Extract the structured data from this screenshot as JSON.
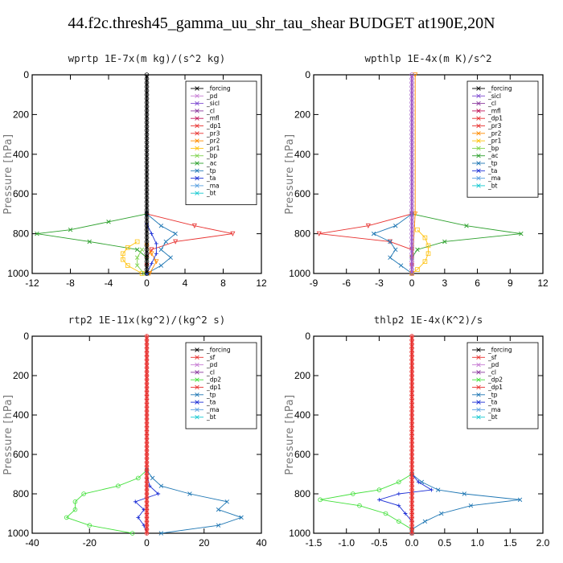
{
  "title": "44.f2c.thresh45_gamma_uu_shr_tau_shear  BUDGET at190E,20N",
  "chart_data": [
    {
      "type": "line",
      "title": "wprtp  1E-7x(m kg)/(s^2 kg)",
      "ylabel": "Pressure [hPa]",
      "xlim": [
        -12,
        12
      ],
      "ylim": [
        1000,
        0
      ],
      "xticks": [
        -12,
        -8,
        -4,
        0,
        4,
        8,
        12
      ],
      "yticks": [
        0,
        200,
        400,
        600,
        800,
        1000
      ],
      "legend": [
        "_forcing",
        "_pd",
        "_sicl",
        "_cl",
        "_mfl",
        "_dp1",
        "_pr3",
        "_pr2",
        "_pr1",
        "_bp",
        "_ac",
        "_tp",
        "_ta",
        "_ma",
        "_bt"
      ],
      "series": [
        {
          "name": "_dp1",
          "color": "#e8312f",
          "marker": "tri",
          "p": [
            700,
            760,
            800,
            840,
            880,
            920,
            960,
            1000
          ],
          "x": [
            0,
            5,
            9,
            3,
            0.5,
            0,
            0,
            0
          ]
        },
        {
          "name": "_ac",
          "color": "#2ca02c",
          "marker": "x",
          "p": [
            700,
            740,
            780,
            800,
            840,
            880,
            920,
            1000
          ],
          "x": [
            0,
            -4,
            -8,
            -11.5,
            -6,
            -1,
            0,
            0
          ]
        },
        {
          "name": "_tp",
          "color": "#1f77b4",
          "marker": "x",
          "p": [
            700,
            760,
            800,
            840,
            880,
            920,
            960,
            1000
          ],
          "x": [
            0,
            1.5,
            3,
            2,
            1.5,
            2.5,
            1.5,
            0
          ]
        },
        {
          "name": "_pr1",
          "color": "#ffc20e",
          "marker": "sq",
          "p": [
            840,
            870,
            900,
            930,
            960,
            1000
          ],
          "x": [
            -1,
            -2,
            -2.5,
            -2.5,
            -2,
            -0.5
          ]
        },
        {
          "name": "_pr2",
          "color": "#ff8c00",
          "marker": "tri",
          "p": [
            860,
            900,
            940,
            1000
          ],
          "x": [
            0,
            0.5,
            1,
            0.3
          ]
        },
        {
          "name": "_ta",
          "color": "#1c2fd6",
          "marker": "plus",
          "p": [
            750,
            800,
            850,
            900,
            950,
            1000
          ],
          "x": [
            0,
            0.5,
            1,
            1,
            0.5,
            0
          ]
        },
        {
          "name": "_bp",
          "color": "#7fd34e",
          "marker": "x",
          "p": [
            880,
            920,
            960,
            1000
          ],
          "x": [
            -0.5,
            -1,
            -1,
            -0.3
          ]
        },
        {
          "name": "_forcing",
          "color": "#000000",
          "marker": "circ",
          "p": [
            0,
            1000
          ],
          "x": [
            0,
            0
          ]
        }
      ]
    },
    {
      "type": "line",
      "title": "wpthlp  1E-4x(m K)/s^2",
      "ylabel": "Pressure [hPa]",
      "xlim": [
        -9,
        12
      ],
      "ylim": [
        1000,
        0
      ],
      "xticks": [
        -9,
        -6,
        -3,
        0,
        3,
        6,
        9,
        12
      ],
      "yticks": [
        0,
        200,
        400,
        600,
        800,
        1000
      ],
      "legend": [
        "_forcing",
        "_sicl",
        "_cl",
        "_mfl",
        "_dp1",
        "_pr3",
        "_pr2",
        "_pr1",
        "_bp",
        "_ac",
        "_tp",
        "_ta",
        "_ma",
        "_bt"
      ],
      "series": [
        {
          "name": "_dp1",
          "color": "#e8312f",
          "marker": "tri",
          "p": [
            700,
            760,
            800,
            840,
            880,
            920,
            960,
            1000
          ],
          "x": [
            0,
            -4,
            -8.5,
            -2,
            0,
            0,
            0,
            0
          ]
        },
        {
          "name": "_ac",
          "color": "#2ca02c",
          "marker": "x",
          "p": [
            700,
            760,
            800,
            840,
            880,
            920,
            1000
          ],
          "x": [
            0,
            5,
            10,
            3,
            0.5,
            0,
            0
          ]
        },
        {
          "name": "_tp",
          "color": "#1f77b4",
          "marker": "x",
          "p": [
            700,
            760,
            800,
            840,
            880,
            920,
            960,
            1000
          ],
          "x": [
            0,
            -1.5,
            -3.5,
            -2,
            -1.5,
            -2,
            -1,
            0
          ]
        },
        {
          "name": "_pr1",
          "color": "#ffc20e",
          "marker": "sq",
          "p": [
            780,
            820,
            860,
            900,
            940,
            980,
            1000
          ],
          "x": [
            0.5,
            1.2,
            1.5,
            1.5,
            1.2,
            0.5,
            0
          ]
        },
        {
          "name": "_pr2",
          "color": "#ff8c00",
          "marker": "tri",
          "p": [
            0,
            700,
            1000
          ],
          "x": [
            0.3,
            0.3,
            0
          ]
        },
        {
          "name": "_forcing",
          "color": "#a05bc8",
          "marker": "circ",
          "p": [
            0,
            1000
          ],
          "x": [
            0,
            0
          ]
        }
      ]
    },
    {
      "type": "line",
      "title": "rtp2  1E-11x(kg^2)/(kg^2 s)",
      "ylabel": "Pressure [hPa]",
      "xlim": [
        -40,
        40
      ],
      "ylim": [
        1000,
        0
      ],
      "xticks": [
        -40,
        -20,
        0,
        20,
        40
      ],
      "yticks": [
        0,
        200,
        400,
        600,
        800,
        1000
      ],
      "legend": [
        "_forcing",
        "_sf",
        "_pd",
        "_cl",
        "_dp2",
        "_dp1",
        "_tp",
        "_ta",
        "_ma",
        "_bt"
      ],
      "series": [
        {
          "name": "_dp1",
          "color": "#42e03a",
          "marker": "circ",
          "p": [
            680,
            720,
            760,
            800,
            840,
            880,
            920,
            960,
            1000
          ],
          "x": [
            0,
            -3,
            -10,
            -22,
            -25,
            -25,
            -28,
            -20,
            -5
          ]
        },
        {
          "name": "_tp",
          "color": "#1f77b4",
          "marker": "x",
          "p": [
            680,
            720,
            760,
            800,
            840,
            880,
            920,
            960,
            1000
          ],
          "x": [
            0,
            2,
            5,
            15,
            28,
            25,
            33,
            25,
            5
          ]
        },
        {
          "name": "_ta",
          "color": "#1c2fd6",
          "marker": "plus",
          "p": [
            700,
            760,
            800,
            840,
            880,
            920,
            960,
            1000
          ],
          "x": [
            0,
            1,
            4,
            -4,
            -1,
            -3,
            -1,
            0
          ]
        },
        {
          "name": "_sf",
          "color": "#e8312f",
          "marker": "plus",
          "p": [
            0,
            1000
          ],
          "x": [
            0,
            0
          ]
        },
        {
          "name": "_forcing",
          "color": "#e8312f",
          "marker": "circ",
          "p": [
            0,
            1000
          ],
          "x": [
            0,
            0
          ]
        }
      ]
    },
    {
      "type": "line",
      "title": "thlp2  1E-4x(K^2)/s",
      "ylabel": "Pressure [hPa]",
      "xlim": [
        -1.5,
        2.0
      ],
      "ylim": [
        1000,
        0
      ],
      "xticks": [
        -1.5,
        -1.0,
        -0.5,
        0.0,
        0.5,
        1.0,
        1.5,
        2.0
      ],
      "yticks": [
        0,
        200,
        400,
        600,
        800,
        1000
      ],
      "legend": [
        "_forcing",
        "_sf",
        "_pd",
        "_cl",
        "_dp2",
        "_dp1",
        "_tp",
        "_ta",
        "_ma",
        "_bt"
      ],
      "series": [
        {
          "name": "_dp1",
          "color": "#42e03a",
          "marker": "circ",
          "p": [
            700,
            740,
            780,
            800,
            830,
            860,
            900,
            940,
            980,
            1000
          ],
          "x": [
            0,
            -0.2,
            -0.5,
            -0.9,
            -1.4,
            -0.8,
            -0.4,
            -0.2,
            0,
            0
          ]
        },
        {
          "name": "_tp",
          "color": "#1f77b4",
          "marker": "x",
          "p": [
            700,
            740,
            780,
            800,
            830,
            860,
            900,
            940,
            980,
            1000
          ],
          "x": [
            0,
            0.15,
            0.4,
            0.8,
            1.65,
            0.9,
            0.45,
            0.2,
            0,
            0
          ]
        },
        {
          "name": "_ta",
          "color": "#1c2fd6",
          "marker": "plus",
          "p": [
            700,
            740,
            780,
            800,
            830,
            860,
            900,
            940,
            1000
          ],
          "x": [
            0,
            0.1,
            0.3,
            -0.2,
            -0.5,
            -0.2,
            -0.1,
            0,
            0
          ]
        },
        {
          "name": "_sf",
          "color": "#e8312f",
          "marker": "plus",
          "p": [
            0,
            1000
          ],
          "x": [
            0,
            0
          ]
        },
        {
          "name": "_forcing",
          "color": "#e8312f",
          "marker": "circ",
          "p": [
            0,
            1000
          ],
          "x": [
            0,
            0
          ]
        }
      ]
    }
  ]
}
